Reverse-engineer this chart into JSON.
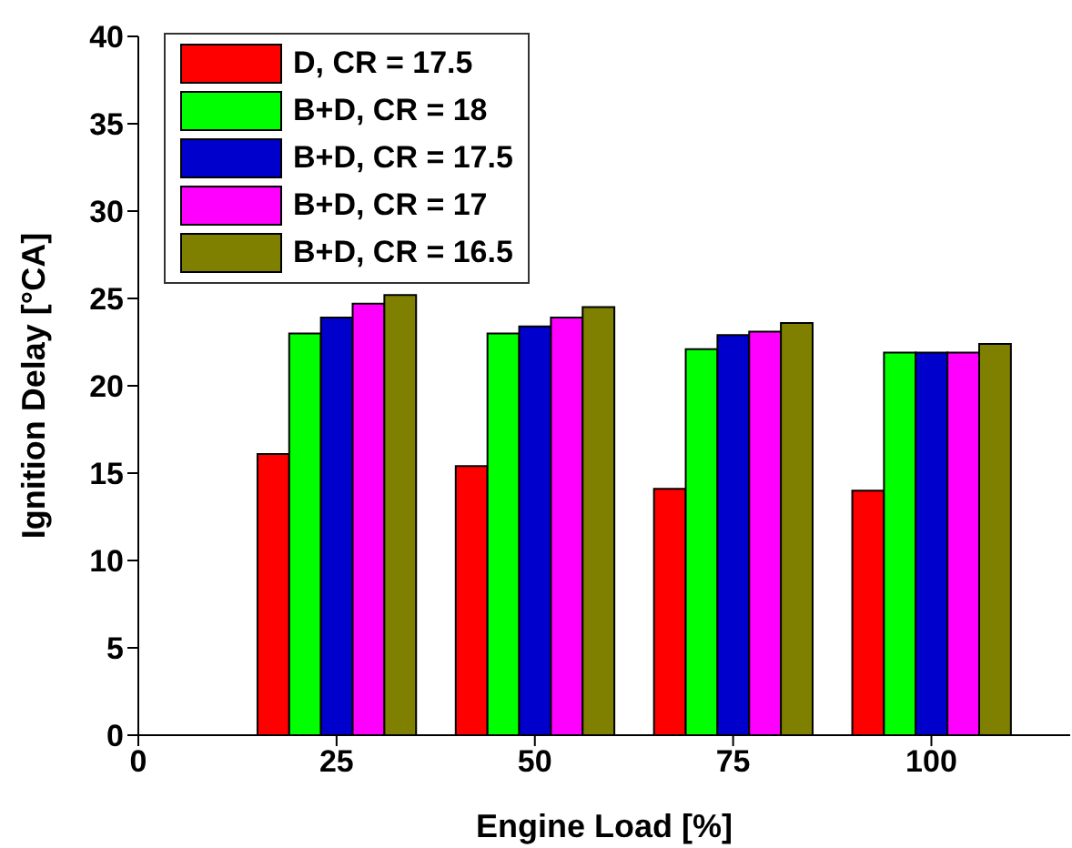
{
  "chart_data": {
    "type": "bar",
    "xlabel": "Engine Load [%]",
    "ylabel": "Ignition Delay [°CA]",
    "x": [
      25,
      50,
      75,
      100
    ],
    "series": [
      {
        "name": "D, CR = 17.5",
        "color": "#ff0000",
        "values": [
          16.1,
          15.4,
          14.1,
          14.0
        ]
      },
      {
        "name": "B+D, CR = 18",
        "color": "#00ff00",
        "values": [
          23.0,
          23.0,
          22.1,
          21.9
        ]
      },
      {
        "name": "B+D, CR = 17.5",
        "color": "#0000cc",
        "values": [
          23.9,
          23.4,
          22.9,
          21.9
        ]
      },
      {
        "name": "B+D, CR = 17",
        "color": "#ff00ff",
        "values": [
          24.7,
          23.9,
          23.1,
          21.9
        ]
      },
      {
        "name": "B+D, CR = 16.5",
        "color": "#808000",
        "values": [
          25.2,
          24.5,
          23.6,
          22.4
        ]
      }
    ],
    "xlim": [
      0,
      117.5
    ],
    "xticks": [
      0,
      25,
      50,
      75,
      100
    ],
    "ylim": [
      0,
      40
    ],
    "yticks": [
      0,
      5,
      10,
      15,
      20,
      25,
      30,
      35,
      40
    ],
    "grid": false,
    "legend": "top left"
  }
}
